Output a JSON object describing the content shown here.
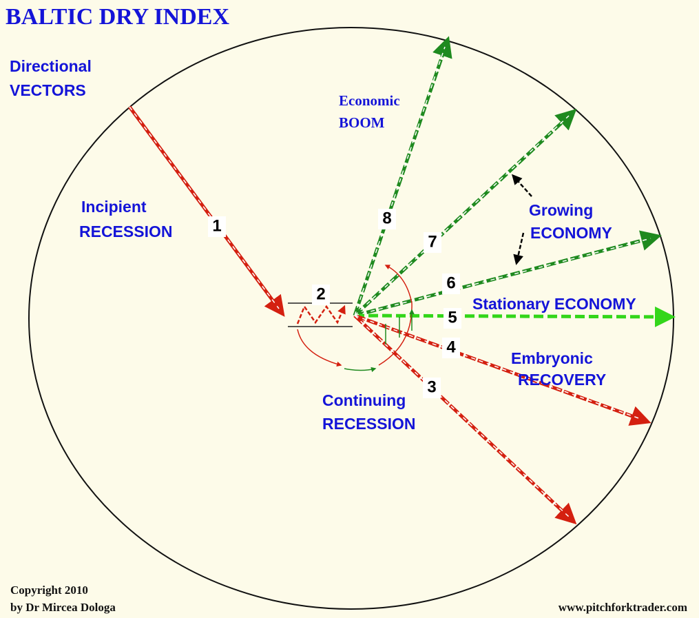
{
  "title": "BALTIC DRY INDEX",
  "header": {
    "line1": "Directional",
    "line2": "VECTORS"
  },
  "labels": {
    "boom": [
      "Economic",
      "BOOM"
    ],
    "incipient": [
      "Incipient",
      "RECESSION"
    ],
    "growing": [
      "Growing",
      "ECONOMY"
    ],
    "stationary": "Stationary ECONOMY",
    "embryonic": [
      "Embryonic",
      "RECOVERY"
    ],
    "continuing": [
      "Continuing",
      "RECESSION"
    ]
  },
  "vector_numbers": [
    1,
    2,
    3,
    4,
    5,
    6,
    7,
    8
  ],
  "copyright": [
    "Copyright 2010",
    "by Dr Mircea Dologa"
  ],
  "url": "www.pitchforktrader.com"
}
